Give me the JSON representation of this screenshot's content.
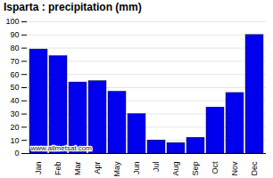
{
  "chart_data": {
    "type": "bar",
    "title": "Isparta : precipitation (mm)",
    "categories": [
      "Jan",
      "Feb",
      "Mar",
      "Apr",
      "May",
      "Jun",
      "Jul",
      "Aug",
      "Sep",
      "Oct",
      "Nov",
      "Dec"
    ],
    "values": [
      79,
      74,
      54,
      55,
      47,
      30,
      10,
      8,
      12,
      35,
      46,
      90
    ],
    "color": "#0000ee",
    "ylim": [
      0,
      100
    ],
    "yticks": [
      0,
      10,
      20,
      30,
      40,
      50,
      60,
      70,
      80,
      90,
      100
    ],
    "grid": true,
    "annotations": [
      "www.allmetsat.com"
    ]
  }
}
